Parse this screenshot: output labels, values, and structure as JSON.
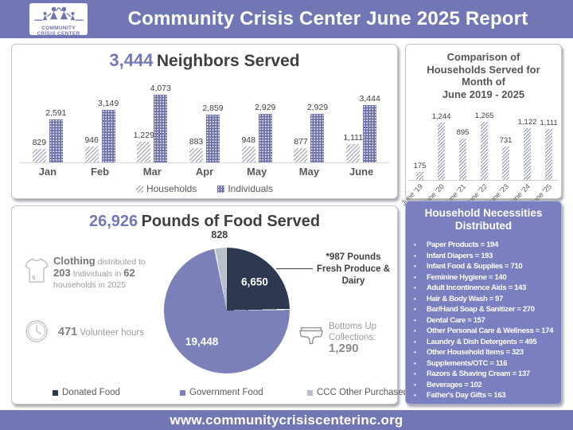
{
  "header": {
    "title": "Community Crisis Center June 2025 Report",
    "logo_line1": "COMMUNITY",
    "logo_line2": "CRISIS CENTER"
  },
  "footer": {
    "url": "www.communitycrisiscenterinc.org"
  },
  "colors": {
    "header_purple": "#7176b5",
    "panel_purple": "#7a7fc0",
    "bar_purple": "#6e73ad",
    "pie_dark": "#2e3951",
    "pie_purple": "#7c80b9",
    "pie_gray": "#b9bfca"
  },
  "chart_data": [
    {
      "type": "bar",
      "title_value": "3,444",
      "title_label": "Neighbors Served",
      "categories": [
        "Jan",
        "Feb",
        "Mar",
        "Apr",
        "May",
        "May",
        "June"
      ],
      "series": [
        {
          "name": "Households",
          "pattern": "hatch",
          "values": [
            829,
            946,
            1229,
            883,
            948,
            877,
            1111
          ]
        },
        {
          "name": "Individuals",
          "pattern": "dots",
          "values": [
            2591,
            3149,
            4073,
            2859,
            2929,
            2929,
            3444
          ]
        }
      ],
      "ylim": [
        0,
        4300
      ],
      "grid": false,
      "legend_position": "bottom"
    },
    {
      "type": "bar",
      "title_lines": [
        "Comparison of",
        "Households Served for",
        "Month of",
        "June 2019 - 2025"
      ],
      "categories": [
        "June '19",
        "June '20",
        "June '21",
        "June '22",
        "June '23",
        "June '24",
        "June '25"
      ],
      "values": [
        175,
        1244,
        895,
        1265,
        731,
        1122,
        1111
      ],
      "pattern": "hatch",
      "ylim": [
        0,
        1400
      ],
      "grid": false
    },
    {
      "type": "pie",
      "title_value": "26,926",
      "title_label": "Pounds of Food Served",
      "slices": [
        {
          "label": "Donated Food",
          "value": 6650,
          "color": "#2e3951"
        },
        {
          "label": "Government Food",
          "value": 19448,
          "color": "#7c80b9"
        },
        {
          "label": "CCC Other Purchased",
          "value": 828,
          "color": "#b9bfca"
        }
      ],
      "outside_label_value": "828",
      "annotation": "*987 Pounds Fresh Produce & Dairy",
      "start_angle_deg": 0,
      "clockwise": true,
      "legend_position": "bottom"
    }
  ],
  "food_stats": {
    "clothing": {
      "b1": "Clothing",
      "t1": " distributed to ",
      "b2": "203",
      "t2": " Individuals in ",
      "b3": "62",
      "t3": " households in 2025"
    },
    "volunteer": {
      "value": "471",
      "label": " Volunteer hours"
    },
    "bottoms_up": {
      "line1": "Bottoms Up",
      "line2": "Collections:",
      "value": "1,290"
    },
    "callout": {
      "line1": "*987 Pounds",
      "line2": "Fresh Produce &",
      "line3": "Dairy"
    }
  },
  "necessities": {
    "title_line1": "Household Necessities",
    "title_line2": "Distributed",
    "items": [
      "Paper Products = 194",
      "Infant Diapers = 193",
      "Infant Food & Supplies  = 710",
      "Feminine Hygiene = 140",
      "Adult Incontinence Aids = 143",
      "Hair & Body Wash = 97",
      "Bar/Hand Soap & Sanitizer = 270",
      "Dental Care = 157",
      "Other Personal Care & Wellness = 174",
      "Laundry & Dish Detergents = 495",
      "Other Household Items = 323",
      "Supplements/OTC = 116",
      "Razors & Shaving Cream = 137",
      "Beverages = 102",
      "Father's Day Gifts = 163"
    ]
  }
}
